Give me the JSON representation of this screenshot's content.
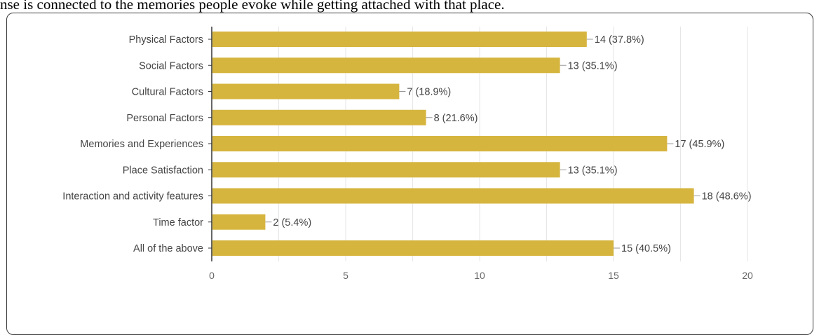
{
  "caption": "nse is connected to the memories people evoke while getting attached with that place.",
  "colors": {
    "bar": "#d6b53f",
    "grid": "#e6e6e6",
    "axis": "#333333",
    "frame": "#3c3c3c",
    "leader": "#999999"
  },
  "chart_data": {
    "type": "bar",
    "orientation": "horizontal",
    "categories": [
      "Physical Factors",
      "Social Factors",
      "Cultural Factors",
      "Personal Factors",
      "Memories and Experiences",
      "Place Satisfaction",
      "Interaction and activity features",
      "Time factor",
      "All of the above"
    ],
    "values": [
      14,
      13,
      7,
      8,
      17,
      13,
      18,
      2,
      15
    ],
    "labels": [
      "14 (37.8%)",
      "13 (35.1%)",
      "7 (18.9%)",
      "8 (21.6%)",
      "17 (45.9%)",
      "13 (35.1%)",
      "18 (48.6%)",
      "2 (5.4%)",
      "15 (40.5%)"
    ],
    "xlim": [
      0,
      20
    ],
    "xticks": [
      0,
      5,
      10,
      15,
      20
    ],
    "xtick_labels": [
      "0",
      "5",
      "10",
      "15",
      "20"
    ],
    "grid": true,
    "legend": "none"
  }
}
